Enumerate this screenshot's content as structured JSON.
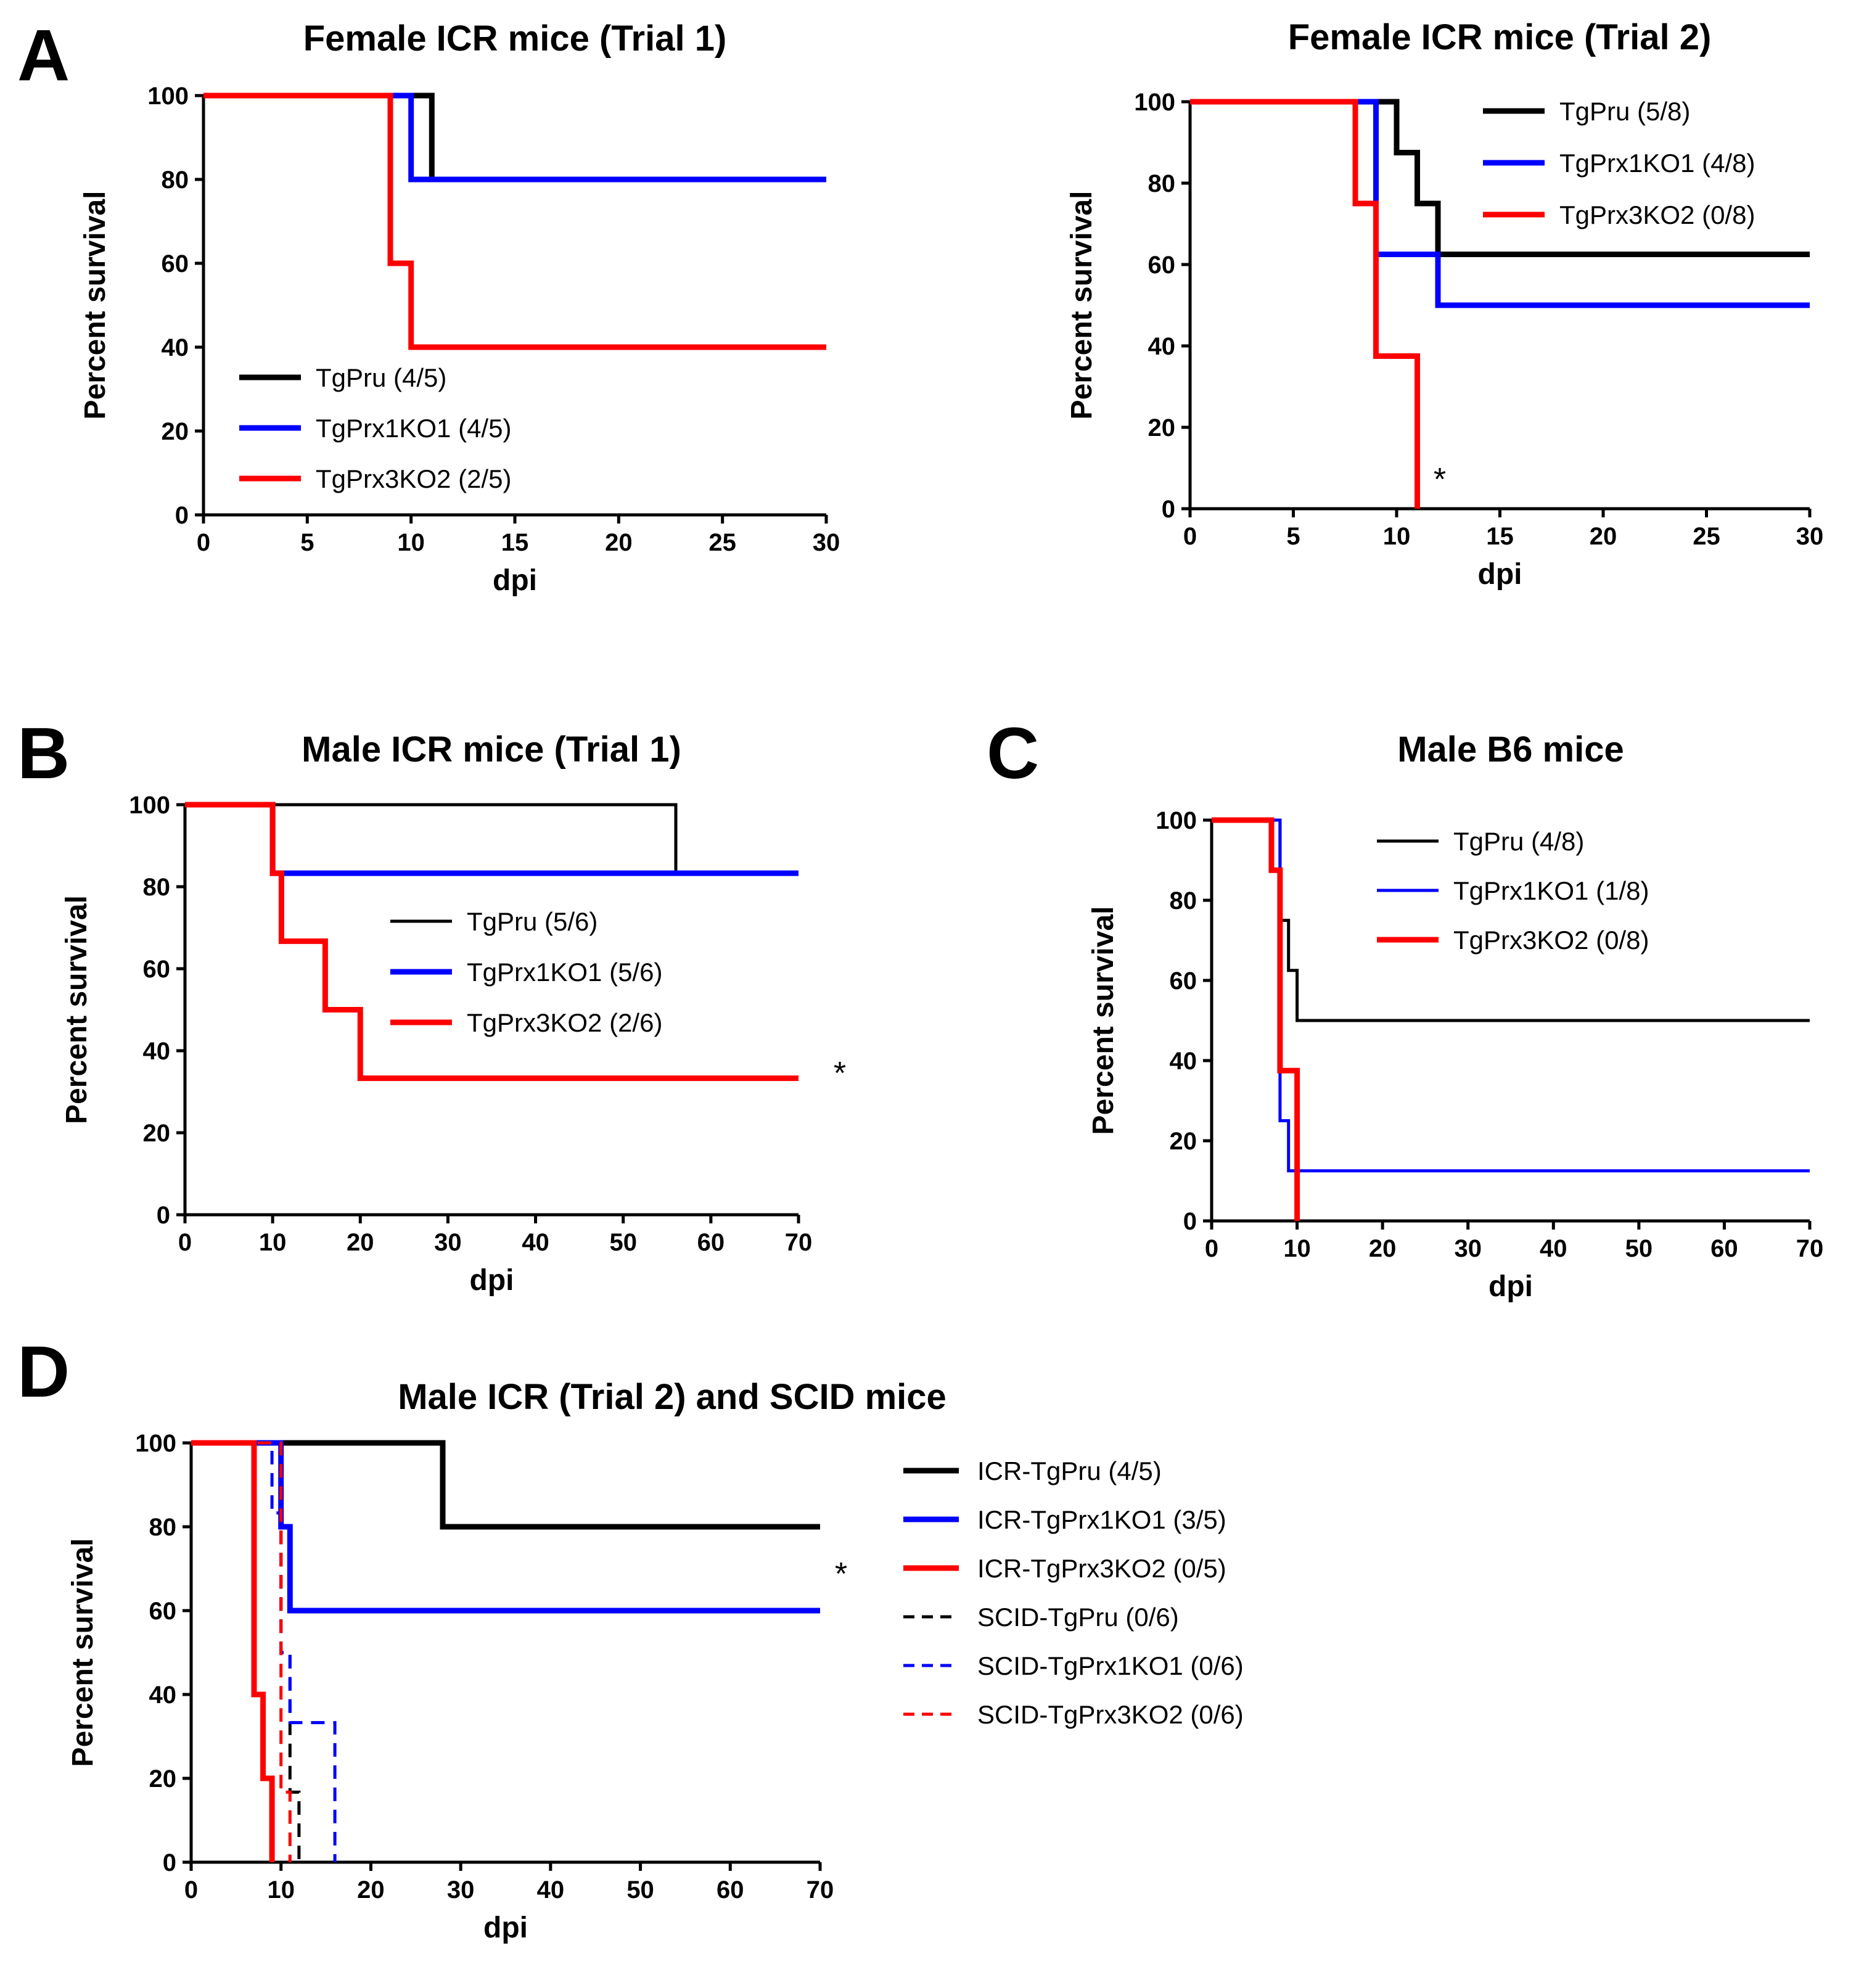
{
  "panel_letters": [
    "A",
    "B",
    "C",
    "D"
  ],
  "chart_data": [
    {
      "id": "A1",
      "type": "line",
      "panel": "A",
      "title": "Female ICR mice (Trial 1)",
      "xlabel": "dpi",
      "ylabel": "Percent survival",
      "xlim": [
        0,
        30
      ],
      "ylim": [
        0,
        100
      ],
      "xticks": [
        0,
        5,
        10,
        15,
        20,
        25,
        30
      ],
      "yticks": [
        0,
        20,
        40,
        60,
        80,
        100
      ],
      "legend_position": "bottom-left",
      "annotation": "",
      "series": [
        {
          "name": "TgPru (4/5)",
          "color": "#000000",
          "dash": "solid",
          "weight": "thick",
          "x": [
            0,
            11,
            11,
            30
          ],
          "y": [
            100,
            100,
            80,
            80
          ]
        },
        {
          "name": "TgPrx1KO1 (4/5)",
          "color": "#0000ff",
          "dash": "solid",
          "weight": "thick",
          "x": [
            0,
            10,
            10,
            30
          ],
          "y": [
            100,
            100,
            80,
            80
          ]
        },
        {
          "name": "TgPrx3KO2 (2/5)",
          "color": "#ff0000",
          "dash": "solid",
          "weight": "thick",
          "x": [
            0,
            9,
            9,
            10,
            10,
            30
          ],
          "y": [
            100,
            100,
            60,
            60,
            40,
            40
          ]
        }
      ]
    },
    {
      "id": "A2",
      "type": "line",
      "panel": "A",
      "title": "Female ICR mice (Trial 2)",
      "xlabel": "dpi",
      "ylabel": "Percent survival",
      "xlim": [
        0,
        30
      ],
      "ylim": [
        0,
        100
      ],
      "xticks": [
        0,
        5,
        10,
        15,
        20,
        25,
        30
      ],
      "yticks": [
        0,
        20,
        40,
        60,
        80,
        100
      ],
      "legend_position": "top-right",
      "annotation": "*",
      "series": [
        {
          "name": "TgPru (5/8)",
          "color": "#000000",
          "dash": "solid",
          "weight": "thick",
          "x": [
            0,
            10,
            10,
            11,
            11,
            12,
            12,
            30
          ],
          "y": [
            100,
            100,
            87.5,
            87.5,
            75,
            75,
            62.5,
            62.5
          ]
        },
        {
          "name": "TgPrx1KO1 (4/8)",
          "color": "#0000ff",
          "dash": "solid",
          "weight": "thick",
          "x": [
            0,
            9,
            9,
            12,
            12,
            30
          ],
          "y": [
            100,
            100,
            62.5,
            62.5,
            50,
            50
          ]
        },
        {
          "name": "TgPrx3KO2 (0/8)",
          "color": "#ff0000",
          "dash": "solid",
          "weight": "thick",
          "x": [
            0,
            8,
            8,
            9,
            9,
            11,
            11
          ],
          "y": [
            100,
            100,
            75,
            75,
            37.5,
            37.5,
            0
          ]
        }
      ]
    },
    {
      "id": "B",
      "type": "line",
      "panel": "B",
      "title": "Male ICR mice (Trial 1)",
      "xlabel": "dpi",
      "ylabel": "Percent survival",
      "xlim": [
        0,
        70
      ],
      "ylim": [
        0,
        100
      ],
      "xticks": [
        0,
        10,
        20,
        30,
        40,
        50,
        60,
        70
      ],
      "yticks": [
        0,
        20,
        40,
        60,
        80,
        100
      ],
      "legend_position": "center",
      "annotation": "*",
      "series": [
        {
          "name": "TgPru (5/6)",
          "color": "#000000",
          "dash": "solid",
          "weight": "thin",
          "x": [
            0,
            56,
            56,
            70
          ],
          "y": [
            100,
            100,
            83.3,
            83.3
          ]
        },
        {
          "name": "TgPrx1KO1 (5/6)",
          "color": "#0000ff",
          "dash": "solid",
          "weight": "thick",
          "x": [
            0,
            10,
            10,
            70
          ],
          "y": [
            100,
            100,
            83.3,
            83.3
          ]
        },
        {
          "name": "TgPrx3KO2 (2/6)",
          "color": "#ff0000",
          "dash": "solid",
          "weight": "thick",
          "x": [
            0,
            10,
            10,
            11,
            11,
            16,
            16,
            20,
            20,
            70
          ],
          "y": [
            100,
            100,
            83.3,
            83.3,
            66.7,
            66.7,
            50,
            50,
            33.3,
            33.3
          ]
        }
      ]
    },
    {
      "id": "C",
      "type": "line",
      "panel": "C",
      "title": "Male B6 mice",
      "xlabel": "dpi",
      "ylabel": "Percent survival",
      "xlim": [
        0,
        70
      ],
      "ylim": [
        0,
        100
      ],
      "xticks": [
        0,
        10,
        20,
        30,
        40,
        50,
        60,
        70
      ],
      "yticks": [
        0,
        20,
        40,
        60,
        80,
        100
      ],
      "legend_position": "top-center",
      "annotation": "",
      "series": [
        {
          "name": "TgPru (4/8)",
          "color": "#000000",
          "dash": "solid",
          "weight": "thin",
          "x": [
            0,
            8,
            8,
            9,
            9,
            10,
            10,
            70
          ],
          "y": [
            100,
            100,
            75,
            75,
            62.5,
            62.5,
            50,
            50
          ]
        },
        {
          "name": "TgPrx1KO1 (1/8)",
          "color": "#0000ff",
          "dash": "solid",
          "weight": "thin",
          "x": [
            0,
            8,
            8,
            9,
            9,
            70
          ],
          "y": [
            100,
            100,
            25,
            25,
            12.5,
            12.5
          ]
        },
        {
          "name": "TgPrx3KO2 (0/8)",
          "color": "#ff0000",
          "dash": "solid",
          "weight": "thick",
          "x": [
            0,
            7,
            7,
            8,
            8,
            10,
            10
          ],
          "y": [
            100,
            100,
            87.5,
            87.5,
            37.5,
            37.5,
            0
          ]
        }
      ]
    },
    {
      "id": "D",
      "type": "line",
      "panel": "D",
      "title": "Male ICR (Trial 2) and SCID mice",
      "xlabel": "dpi",
      "ylabel": "Percent survival",
      "xlim": [
        0,
        70
      ],
      "ylim": [
        0,
        100
      ],
      "xticks": [
        0,
        10,
        20,
        30,
        40,
        50,
        60,
        70
      ],
      "yticks": [
        0,
        20,
        40,
        60,
        80,
        100
      ],
      "legend_position": "right-outside",
      "annotation": "*",
      "series": [
        {
          "name": "ICR-TgPru (4/5)",
          "color": "#000000",
          "dash": "solid",
          "weight": "thick",
          "x": [
            0,
            28,
            28,
            70
          ],
          "y": [
            100,
            100,
            80,
            80
          ]
        },
        {
          "name": "ICR-TgPrx1KO1 (3/5)",
          "color": "#0000ff",
          "dash": "solid",
          "weight": "thick",
          "x": [
            0,
            10,
            10,
            11,
            11,
            70
          ],
          "y": [
            100,
            100,
            80,
            80,
            60,
            60
          ]
        },
        {
          "name": "ICR-TgPrx3KO2 (0/5)",
          "color": "#ff0000",
          "dash": "solid",
          "weight": "thick",
          "x": [
            0,
            7,
            7,
            8,
            8,
            9,
            9
          ],
          "y": [
            100,
            100,
            40,
            40,
            20,
            20,
            0
          ]
        },
        {
          "name": "SCID-TgPru (0/6)",
          "color": "#000000",
          "dash": "dashed",
          "weight": "thin",
          "x": [
            0,
            10,
            10,
            11,
            11,
            12,
            12
          ],
          "y": [
            100,
            100,
            50,
            50,
            16.7,
            16.7,
            0
          ]
        },
        {
          "name": "SCID-TgPrx1KO1 (0/6)",
          "color": "#0000ff",
          "dash": "dashed",
          "weight": "thin",
          "x": [
            0,
            9,
            9,
            10,
            10,
            11,
            11,
            16,
            16
          ],
          "y": [
            100,
            100,
            83.3,
            83.3,
            50,
            50,
            33.3,
            33.3,
            0
          ]
        },
        {
          "name": "SCID-TgPrx3KO2 (0/6)",
          "color": "#ff0000",
          "dash": "dashed",
          "weight": "thin",
          "x": [
            0,
            10,
            10,
            11,
            11
          ],
          "y": [
            100,
            100,
            16.7,
            16.7,
            0
          ]
        }
      ]
    }
  ]
}
